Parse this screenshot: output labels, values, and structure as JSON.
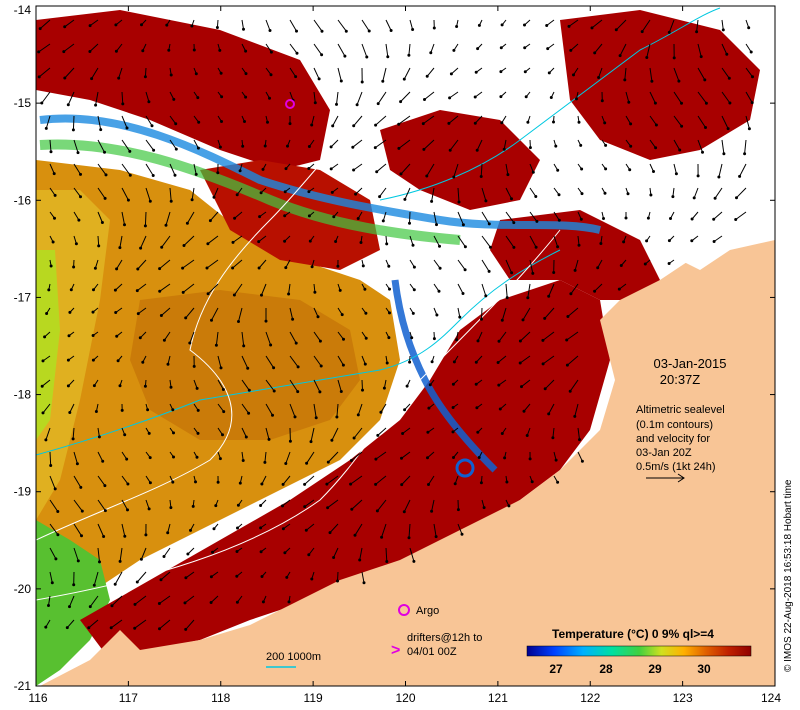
{
  "map": {
    "longitude_ticks": [
      "116",
      "117",
      "118",
      "119",
      "120",
      "121",
      "122",
      "123",
      "124"
    ],
    "latitude_ticks": [
      "-14",
      "-15",
      "-16",
      "-17",
      "-18",
      "-19",
      "-20",
      "-21"
    ],
    "lon_range": [
      116,
      124
    ],
    "lat_range": [
      -21,
      -14
    ]
  },
  "annotations": {
    "date": "03-Jan-2015",
    "time": "20:37Z",
    "sealevel_lines": [
      "Altimetric sealevel",
      "(0.1m contours)",
      "and velocity for",
      "03-Jan 20Z",
      "0.5m/s (1kt 24h)"
    ],
    "argo": "Argo",
    "drifters_line1": "drifters@12h to",
    "drifters_line2": "04/01 00Z",
    "bathymetry": "200  1000m",
    "credit": "© IMOS 22-Aug-2018 16:53:18 Hobart time"
  },
  "colorbar": {
    "title": "Temperature (°C) 0 9% ql>=4",
    "labels": [
      "27",
      "28",
      "29",
      "30"
    ]
  },
  "colors": {
    "land": "#f8c596",
    "cloud": "#ffffff",
    "sst_hot": "#a80000",
    "sst_warm": "#d88a10",
    "sst_mid": "#58c830",
    "sst_cool": "#1a8ae0",
    "isobath_200": "#00c8e0",
    "isobath_1000": "#ffffff",
    "argo": "#e000e0"
  }
}
